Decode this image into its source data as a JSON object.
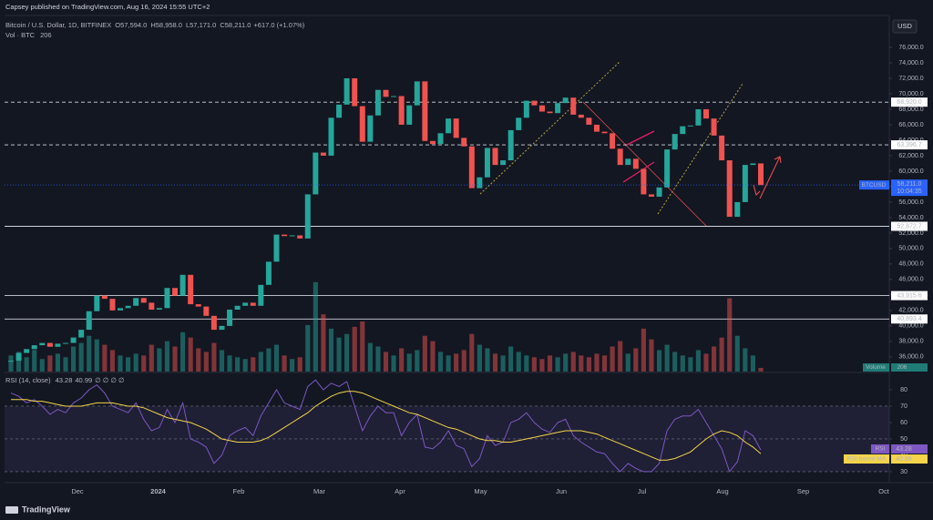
{
  "header": {
    "publisher": "Capsey published on TradingView.com, Aug 16, 2024 15:55 UTC+2"
  },
  "chart_data": {
    "type": "candlestick",
    "title": "Bitcoin / U.S. Dollar, 1D, BITFINEX",
    "ohlc_labels": [
      {
        "key": "O",
        "value": "57,594.0"
      },
      {
        "key": "H",
        "value": "58,958.0"
      },
      {
        "key": "L",
        "value": "57,171.0"
      },
      {
        "key": "C",
        "value": "58,211.0"
      }
    ],
    "change": "+617.0 (+1.07%)",
    "volume_title": "Vol · BTC",
    "volume_value": "206",
    "currency_button": "USD",
    "symbol_label": "BTCUSD",
    "last_price": {
      "value": 58211,
      "label": "58,211.0"
    },
    "countdown": "10:04:35",
    "up_color": "#26a69a",
    "down_color": "#ef5350",
    "close": [
      35500,
      36500,
      37000,
      37500,
      37800,
      37300,
      37700,
      37800,
      38500,
      39500,
      41900,
      43900,
      43500,
      42000,
      42300,
      42600,
      43600,
      43000,
      42100,
      42300,
      44900,
      43900,
      46600,
      42800,
      42500,
      41300,
      39500,
      40000,
      42100,
      42600,
      43000,
      42600,
      45300,
      48300,
      51800,
      51600,
      51700,
      51300,
      57000,
      62400,
      62000,
      66900,
      68600,
      72000,
      68400,
      63800,
      67200,
      70500,
      69600,
      69700,
      66000,
      68500,
      71600,
      63900,
      63500,
      64900,
      66800,
      64300,
      63200,
      57800,
      59200,
      63000,
      60800,
      61400,
      65300,
      66900,
      69100,
      68500,
      67700,
      67500,
      68800,
      69500,
      67300,
      66900,
      66000,
      65100,
      64900,
      62900,
      60800,
      61600,
      60300,
      57000,
      56700,
      57900,
      62800,
      64800,
      65800,
      65900,
      68000,
      66800,
      64600,
      61400,
      54100,
      56000,
      60800,
      61000,
      58200
    ],
    "volume": [
      900,
      1100,
      800,
      1200,
      700,
      900,
      1000,
      800,
      1400,
      1600,
      2000,
      1800,
      1500,
      1200,
      900,
      800,
      1000,
      900,
      1500,
      1300,
      1700,
      1400,
      2200,
      1900,
      1300,
      1100,
      1600,
      1200,
      900,
      800,
      700,
      800,
      1100,
      1300,
      1500,
      900,
      700,
      800,
      2600,
      5000,
      3200,
      2400,
      1900,
      2100,
      2500,
      2800,
      1600,
      1400,
      1100,
      900,
      1300,
      1000,
      1200,
      2000,
      1700,
      1100,
      900,
      1000,
      1200,
      2100,
      1500,
      1300,
      1000,
      900,
      1400,
      1100,
      900,
      800,
      700,
      900,
      800,
      1000,
      1100,
      900,
      800,
      1000,
      900,
      1400,
      1700,
      1000,
      1300,
      2400,
      1800,
      1200,
      1500,
      1100,
      900,
      800,
      1200,
      1000,
      1400,
      1900,
      4100,
      2000,
      1300,
      900,
      206
    ],
    "volume_lim": [
      0,
      5500
    ],
    "ylim": [
      34100,
      80000
    ],
    "yticks": [
      {
        "value": 36000,
        "label": "36,000.0"
      },
      {
        "value": 38000,
        "label": "38,000.0"
      },
      {
        "value": 40000,
        "label": "40,000.0"
      },
      {
        "value": 42000,
        "label": "42,000.0"
      },
      {
        "value": 44000,
        "label": "44,000.0"
      },
      {
        "value": 46000,
        "label": "46,000.0"
      },
      {
        "value": 48000,
        "label": "48,000.0"
      },
      {
        "value": 50000,
        "label": "50,000.0"
      },
      {
        "value": 52000,
        "label": "52,000.0"
      },
      {
        "value": 54000,
        "label": "54,000.0"
      },
      {
        "value": 56000,
        "label": "56,000.0"
      },
      {
        "value": 58000,
        "label": "58,000.0"
      },
      {
        "value": 60000,
        "label": "60,000.0"
      },
      {
        "value": 62000,
        "label": "62,000.0"
      },
      {
        "value": 64000,
        "label": "64,000.0"
      },
      {
        "value": 66000,
        "label": "66,000.0"
      },
      {
        "value": 68000,
        "label": "68,000.0"
      },
      {
        "value": 70000,
        "label": "70,000.0"
      },
      {
        "value": 72000,
        "label": "72,000.0"
      },
      {
        "value": 74000,
        "label": "74,000.0"
      },
      {
        "value": 76000,
        "label": "76,000.0"
      }
    ],
    "levels": [
      {
        "value": 68920,
        "label": "68,920.0",
        "style": "dashed"
      },
      {
        "value": 63396.7,
        "label": "63,396.7",
        "style": "dashed"
      },
      {
        "value": 52872.7,
        "label": "52,872.7",
        "style": "solid"
      },
      {
        "value": 43915.6,
        "label": "43,915.6",
        "style": "solid"
      },
      {
        "value": 40893.4,
        "label": "40,893.4",
        "style": "solid"
      }
    ],
    "volume_label": "Volume",
    "time_labels": [
      "Dec",
      "2024",
      "Feb",
      "Mar",
      "Apr",
      "May",
      "Jun",
      "Jul",
      "Aug",
      "Sep",
      "Oct"
    ],
    "rsi": {
      "title": "RSI (14, close)",
      "value_label": "43.28",
      "ma_value_label": "40.99",
      "extra": "∅ ∅ ∅ ∅",
      "rsi_name": "RSI",
      "ma_name": "RSI-based MA",
      "rsi_color": "#7e57c2",
      "ma_color": "#f5d44a",
      "ylim": [
        24.4,
        90
      ],
      "yticks": [
        30,
        40,
        50,
        60,
        70,
        80
      ],
      "bands": [
        70,
        50,
        30
      ],
      "values": [
        78,
        76,
        72,
        74,
        70,
        65,
        68,
        66,
        72,
        75,
        80,
        83,
        78,
        70,
        68,
        66,
        72,
        62,
        55,
        57,
        68,
        60,
        72,
        50,
        48,
        45,
        35,
        40,
        52,
        55,
        57,
        52,
        64,
        72,
        80,
        72,
        70,
        68,
        82,
        86,
        80,
        84,
        82,
        85,
        70,
        55,
        64,
        70,
        66,
        66,
        52,
        60,
        65,
        45,
        44,
        48,
        55,
        46,
        44,
        33,
        38,
        52,
        46,
        48,
        60,
        62,
        66,
        60,
        56,
        54,
        60,
        62,
        52,
        48,
        45,
        42,
        41,
        35,
        30,
        35,
        32,
        30,
        30,
        35,
        55,
        62,
        64,
        64,
        68,
        60,
        52,
        44,
        30,
        36,
        55,
        52,
        43.28
      ],
      "ma": [
        74,
        74,
        74,
        73,
        73,
        72,
        71,
        70,
        70,
        70,
        71,
        72,
        72,
        72,
        71,
        70,
        70,
        69,
        67,
        65,
        63,
        62,
        61,
        60,
        58,
        56,
        53,
        50,
        49,
        48,
        48,
        48,
        49,
        51,
        54,
        57,
        60,
        63,
        66,
        70,
        73,
        76,
        78,
        79,
        79,
        78,
        76,
        74,
        72,
        70,
        68,
        66,
        65,
        63,
        61,
        59,
        57,
        56,
        54,
        52,
        50,
        49,
        49,
        48,
        48,
        49,
        50,
        51,
        52,
        53,
        54,
        55,
        55,
        55,
        54,
        53,
        51,
        49,
        47,
        45,
        43,
        41,
        39,
        37,
        37,
        38,
        40,
        42,
        46,
        50,
        53,
        55,
        54,
        52,
        48,
        45,
        40.99
      ]
    }
  },
  "footer": {
    "brand": "TradingView"
  }
}
